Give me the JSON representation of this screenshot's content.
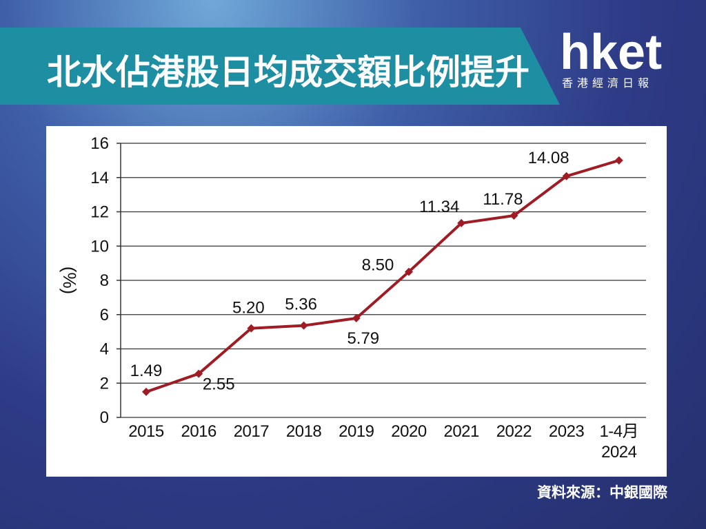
{
  "logo": {
    "name": "hket",
    "subtitle": "香港經濟日報"
  },
  "chart_data": {
    "type": "line",
    "title": "北水佔港股日均成交額比例提升",
    "ylabel": "(%)",
    "source": "資料來源：中銀國際",
    "categories": [
      "2015",
      "2016",
      "2017",
      "2018",
      "2019",
      "2020",
      "2021",
      "2022",
      "2023",
      "1-4月\n2024"
    ],
    "values": [
      1.49,
      2.55,
      5.2,
      5.36,
      5.79,
      8.5,
      11.34,
      11.78,
      14.08,
      15.0
    ],
    "value_labels": [
      "1.49",
      "2.55",
      "5.20",
      "5.36",
      "5.79",
      "8.50",
      "11.34",
      "11.78",
      "14.08",
      null
    ],
    "color": "#a01c24",
    "ylim": [
      0,
      16
    ],
    "yticks": [
      0,
      2,
      4,
      6,
      8,
      10,
      12,
      14,
      16
    ],
    "grid": true
  }
}
